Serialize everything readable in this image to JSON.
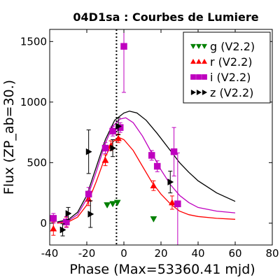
{
  "chart_data": {
    "type": "scatter",
    "title": "04D1sa : Courbes de Lumiere",
    "xlabel": "Phase (Max=53360.41 mjd)",
    "ylabel": "Flux (ZP_ab=30.)",
    "xlim": [
      -40,
      80
    ],
    "ylim": [
      -180,
      1600
    ],
    "xticks": [
      -40,
      -20,
      0,
      20,
      40,
      60,
      80
    ],
    "yticks": [
      0,
      500,
      1000,
      1500
    ],
    "xtick_labels": [
      "-40",
      "-20",
      "0",
      "20",
      "40",
      "60",
      "80"
    ],
    "ytick_labels": [
      "0",
      "500",
      "1000",
      "1500"
    ],
    "vline_x": -4,
    "legend_position": "top-right",
    "series": [
      {
        "name": "g (V2.2)",
        "color": "#008000",
        "marker": "triangle-down",
        "points": [
          {
            "x": -9,
            "y": 150,
            "err": 0
          },
          {
            "x": -6,
            "y": 160,
            "err": 0
          },
          {
            "x": -3.5,
            "y": 170,
            "err": 0
          },
          {
            "x": 16,
            "y": 35,
            "err": 0
          }
        ],
        "curve": []
      },
      {
        "name": "r (V2.2)",
        "color": "#ff0000",
        "marker": "triangle-up",
        "points": [
          {
            "x": -38,
            "y": -45,
            "err": 55
          },
          {
            "x": -31,
            "y": 10,
            "err": 40
          },
          {
            "x": -19,
            "y": 200,
            "err": 55
          },
          {
            "x": -10,
            "y": 520,
            "err": 45
          },
          {
            "x": -7,
            "y": 640,
            "err": 40
          },
          {
            "x": -3,
            "y": 700,
            "err": 35
          },
          {
            "x": 16,
            "y": 310,
            "err": 40
          },
          {
            "x": 26,
            "y": 170,
            "err": 55
          }
        ],
        "curve": [
          {
            "x": -36,
            "y": 0
          },
          {
            "x": -30,
            "y": 10
          },
          {
            "x": -25,
            "y": 50
          },
          {
            "x": -20,
            "y": 150
          },
          {
            "x": -15,
            "y": 340
          },
          {
            "x": -10,
            "y": 550
          },
          {
            "x": -6,
            "y": 670
          },
          {
            "x": -3,
            "y": 710
          },
          {
            "x": 0,
            "y": 690
          },
          {
            "x": 5,
            "y": 600
          },
          {
            "x": 10,
            "y": 470
          },
          {
            "x": 15,
            "y": 340
          },
          {
            "x": 20,
            "y": 240
          },
          {
            "x": 25,
            "y": 160
          },
          {
            "x": 30,
            "y": 100
          },
          {
            "x": 35,
            "y": 70
          },
          {
            "x": 40,
            "y": 55
          },
          {
            "x": 50,
            "y": 40
          },
          {
            "x": 60,
            "y": 32
          }
        ]
      },
      {
        "name": "i (V2.2)",
        "color": "#bf00bf",
        "marker": "square",
        "points": [
          {
            "x": -38,
            "y": 40,
            "err": 40
          },
          {
            "x": -31,
            "y": 10,
            "err": 45
          },
          {
            "x": -19,
            "y": 240,
            "err": 55
          },
          {
            "x": -10,
            "y": 620,
            "err": 45
          },
          {
            "x": -6,
            "y": 760,
            "err": 40
          },
          {
            "x": -2,
            "y": 790,
            "err": 40
          },
          {
            "x": 0,
            "y": 1460,
            "err": 380
          },
          {
            "x": 15,
            "y": 560,
            "err": 40
          },
          {
            "x": 18,
            "y": 470,
            "err": 45
          },
          {
            "x": 27,
            "y": 590,
            "err": 200
          },
          {
            "x": 29,
            "y": 160,
            "err": 420
          }
        ],
        "curve": [
          {
            "x": -36,
            "y": 5
          },
          {
            "x": -30,
            "y": 20
          },
          {
            "x": -25,
            "y": 70
          },
          {
            "x": -20,
            "y": 200
          },
          {
            "x": -15,
            "y": 420
          },
          {
            "x": -10,
            "y": 660
          },
          {
            "x": -6,
            "y": 800
          },
          {
            "x": -2,
            "y": 860
          },
          {
            "x": 1,
            "y": 870
          },
          {
            "x": 5,
            "y": 830
          },
          {
            "x": 10,
            "y": 720
          },
          {
            "x": 15,
            "y": 580
          },
          {
            "x": 20,
            "y": 440
          },
          {
            "x": 25,
            "y": 320
          },
          {
            "x": 30,
            "y": 230
          },
          {
            "x": 35,
            "y": 170
          },
          {
            "x": 40,
            "y": 130
          },
          {
            "x": 50,
            "y": 100
          },
          {
            "x": 60,
            "y": 85
          }
        ]
      },
      {
        "name": "z (V2.2)",
        "color": "#000000",
        "marker": "triangle-right",
        "points": [
          {
            "x": -33,
            "y": -55,
            "err": 50
          },
          {
            "x": -30,
            "y": 80,
            "err": 50
          },
          {
            "x": -19,
            "y": 590,
            "err": 180
          },
          {
            "x": -18,
            "y": 75,
            "err": 110
          },
          {
            "x": -6,
            "y": 620,
            "err": 70
          },
          {
            "x": -3,
            "y": 800,
            "err": 70
          },
          {
            "x": 25,
            "y": 340,
            "err": 90
          }
        ],
        "curve": [
          {
            "x": -36,
            "y": 10
          },
          {
            "x": -30,
            "y": 30
          },
          {
            "x": -25,
            "y": 90
          },
          {
            "x": -20,
            "y": 230
          },
          {
            "x": -15,
            "y": 460
          },
          {
            "x": -10,
            "y": 690
          },
          {
            "x": -5,
            "y": 850
          },
          {
            "x": 0,
            "y": 910
          },
          {
            "x": 3,
            "y": 925
          },
          {
            "x": 7,
            "y": 910
          },
          {
            "x": 12,
            "y": 850
          },
          {
            "x": 18,
            "y": 740
          },
          {
            "x": 25,
            "y": 600
          },
          {
            "x": 30,
            "y": 500
          },
          {
            "x": 35,
            "y": 420
          },
          {
            "x": 40,
            "y": 350
          },
          {
            "x": 50,
            "y": 250
          },
          {
            "x": 60,
            "y": 180
          }
        ]
      }
    ]
  }
}
